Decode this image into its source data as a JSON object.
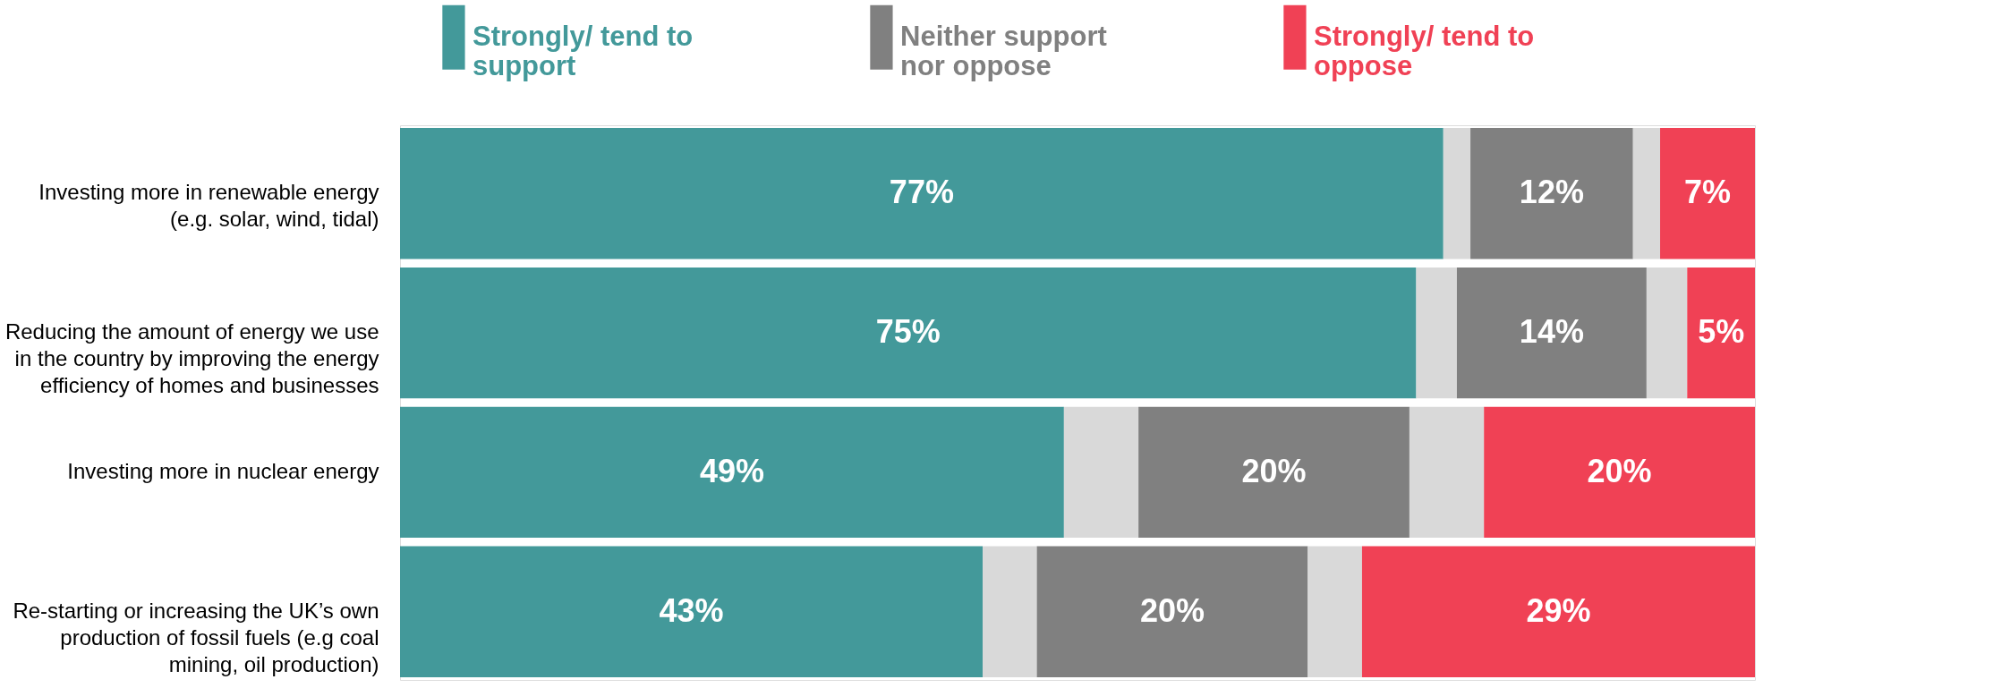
{
  "chart_data": {
    "type": "bar",
    "orientation": "horizontal",
    "stacked": true,
    "legend": "top",
    "tick_labels": "y",
    "categories": [
      "Investing more in renewable energy (e.g. solar, wind, tidal)",
      "Reducing the amount of energy we use in the country by improving the energy efficiency of homes and businesses",
      "Investing more in nuclear energy",
      "Re-starting or increasing the UK’s own production of fossil fuels (e.g coal mining, oil production)"
    ],
    "xlim": [
      0,
      100
    ],
    "series": [
      {
        "name": "Strongly/ tend to support",
        "color": "#43999a",
        "values": [
          77,
          75,
          49,
          43
        ],
        "value_labels": [
          "77%",
          "75%",
          "49%",
          "43%"
        ]
      },
      {
        "color": "#d9d9d9",
        "values": [
          2,
          3,
          5.5,
          4
        ]
      },
      {
        "name": "Neither support nor oppose",
        "color": "#808080",
        "values": [
          12,
          14,
          20,
          20
        ],
        "value_labels": [
          "12%",
          "14%",
          "20%",
          "20%"
        ]
      },
      {
        "color": "#d9d9d9",
        "values": [
          2,
          3,
          5.5,
          4
        ]
      },
      {
        "name": "Strongly/ tend to oppose",
        "color": "#f04155",
        "values": [
          7,
          5,
          20,
          29
        ],
        "value_labels": [
          "7%",
          "5%",
          "20%",
          "29%"
        ]
      }
    ]
  }
}
